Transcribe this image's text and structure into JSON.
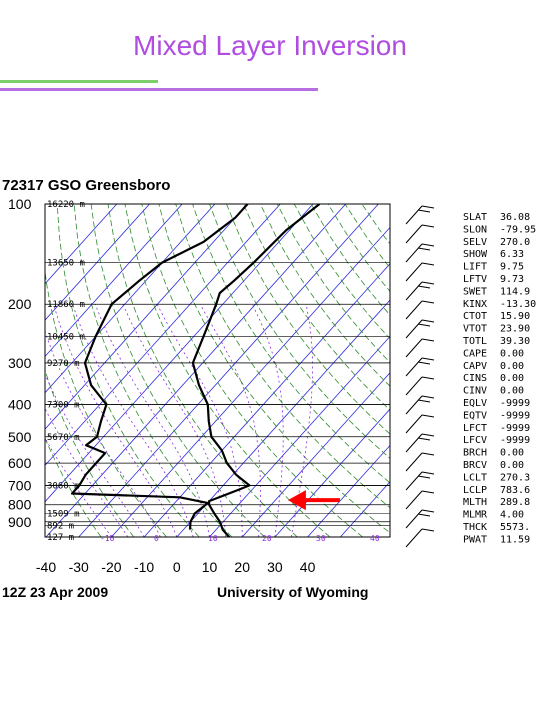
{
  "slide": {
    "title": "Mixed Layer Inversion"
  },
  "colors": {
    "title": "#b04de0",
    "rule_green": "#7ccf6a",
    "rule_purple": "#b56fe0",
    "arrow": "#ff0000",
    "isotherm": "#2a2ae0",
    "dry_adiabat": "#2e8b2e",
    "moist_adiabat": "#8b2be0",
    "sounding": "#000000"
  },
  "chart_data": {
    "type": "line",
    "title": "72317 GSO Greensboro",
    "footer_left": "12Z 23 Apr 2009",
    "footer_right": "University of Wyoming",
    "x_ticks": [
      -40,
      -30,
      -20,
      -10,
      0,
      10,
      20,
      30,
      40
    ],
    "xlim": [
      -40,
      45
    ],
    "y_ticks": [
      100,
      200,
      300,
      400,
      500,
      600,
      700,
      800,
      900
    ],
    "ylim": [
      1000,
      100
    ],
    "y_scale": "log",
    "height_labels": [
      "16220 m",
      "13650 m",
      "11860 m",
      "10450 m",
      "9270 m",
      "7300 m",
      "5670 m",
      "3060 m",
      "1509 m",
      "892 m",
      "127 m"
    ],
    "height_levels": [
      100,
      150,
      200,
      250,
      300,
      400,
      500,
      700,
      850,
      925,
      1000
    ],
    "bottom_row_labels": [
      "-10",
      "0",
      "10",
      "20",
      "30",
      "40"
    ],
    "series": [
      {
        "kind": "temperature",
        "points": [
          [
            100,
            -48
          ],
          [
            120,
            -51
          ],
          [
            150,
            -52
          ],
          [
            170,
            -53
          ],
          [
            185,
            -54
          ],
          [
            200,
            -52
          ],
          [
            250,
            -47
          ],
          [
            300,
            -43
          ],
          [
            350,
            -35
          ],
          [
            400,
            -27
          ],
          [
            450,
            -22
          ],
          [
            500,
            -17
          ],
          [
            550,
            -10
          ],
          [
            600,
            -5
          ],
          [
            650,
            1
          ],
          [
            700,
            8
          ],
          [
            720,
            6
          ],
          [
            750,
            3
          ],
          [
            780,
            0
          ],
          [
            800,
            1
          ],
          [
            850,
            5
          ],
          [
            900,
            9
          ],
          [
            950,
            12
          ],
          [
            1000,
            16
          ]
        ]
      },
      {
        "kind": "dewpoint",
        "points": [
          [
            100,
            -70
          ],
          [
            110,
            -70
          ],
          [
            130,
            -73
          ],
          [
            150,
            -80
          ],
          [
            170,
            -82
          ],
          [
            200,
            -84
          ],
          [
            250,
            -80
          ],
          [
            300,
            -76
          ],
          [
            350,
            -68
          ],
          [
            400,
            -58
          ],
          [
            450,
            -55
          ],
          [
            500,
            -52
          ],
          [
            530,
            -53
          ],
          [
            560,
            -45
          ],
          [
            600,
            -45
          ],
          [
            650,
            -45
          ],
          [
            700,
            -44
          ],
          [
            740,
            -44
          ],
          [
            760,
            -10
          ],
          [
            790,
            0
          ],
          [
            800,
            0
          ],
          [
            850,
            -1
          ],
          [
            900,
            0
          ],
          [
            950,
            2
          ]
        ]
      }
    ],
    "wind_barbs_count": 18,
    "stats": [
      {
        "label": "SLAT",
        "value": "36.08"
      },
      {
        "label": "SLON",
        "value": "-79.95"
      },
      {
        "label": "SELV",
        "value": "270.0"
      },
      {
        "label": "SHOW",
        "value": "6.33"
      },
      {
        "label": "LIFT",
        "value": "9.75"
      },
      {
        "label": "LFTV",
        "value": "9.73"
      },
      {
        "label": "SWET",
        "value": "114.9"
      },
      {
        "label": "KINX",
        "value": "-13.30"
      },
      {
        "label": "CTOT",
        "value": "15.90"
      },
      {
        "label": "VTOT",
        "value": "23.90"
      },
      {
        "label": "TOTL",
        "value": "39.30"
      },
      {
        "label": "CAPE",
        "value": "0.00"
      },
      {
        "label": "CAPV",
        "value": "0.00"
      },
      {
        "label": "CINS",
        "value": "0.00"
      },
      {
        "label": "CINV",
        "value": "0.00"
      },
      {
        "label": "EQLV",
        "value": "-9999"
      },
      {
        "label": "EQTV",
        "value": "-9999"
      },
      {
        "label": "LFCT",
        "value": "-9999"
      },
      {
        "label": "LFCV",
        "value": "-9999"
      },
      {
        "label": "BRCH",
        "value": "0.00"
      },
      {
        "label": "BRCV",
        "value": "0.00"
      },
      {
        "label": "LCLT",
        "value": "270.3"
      },
      {
        "label": "LCLP",
        "value": "783.6"
      },
      {
        "label": "MLTH",
        "value": "289.8"
      },
      {
        "label": "MLMR",
        "value": "4.00"
      },
      {
        "label": "THCK",
        "value": "5573."
      },
      {
        "label": "PWAT",
        "value": "11.59"
      }
    ],
    "annotation": {
      "kind": "arrow",
      "pressure": 775,
      "temperature": 22
    }
  }
}
